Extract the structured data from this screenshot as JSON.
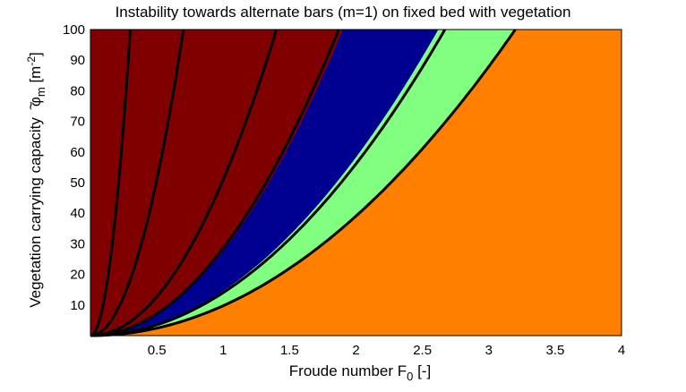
{
  "chart_data": {
    "type": "area",
    "title": "Instability towards alternate bars (m=1) on fixed bed with vegetation",
    "xlabel_main": "Froude number  F",
    "xlabel_sub": "0",
    "xlabel_unit": " [-]",
    "ylabel_main": "Vegetation carrying capacity",
    "ylabel_symbol": "φ",
    "ylabel_tilde": "~",
    "ylabel_symbol_sub": "m",
    "ylabel_unit": " [m",
    "ylabel_unit_sup": "-2",
    "ylabel_unit_close": "]",
    "xlim": [
      0,
      4
    ],
    "ylim": [
      0,
      100
    ],
    "x_ticks": [
      0.5,
      1,
      1.5,
      2,
      2.5,
      3,
      3.5,
      4
    ],
    "x_tick_labels": [
      "0.5",
      "1",
      "1.5",
      "2",
      "2.5",
      "3",
      "3.5",
      "4"
    ],
    "y_ticks": [
      10,
      20,
      30,
      40,
      50,
      60,
      70,
      80,
      90,
      100
    ],
    "y_tick_labels": [
      "10",
      "20",
      "30",
      "40",
      "50",
      "60",
      "70",
      "80",
      "90",
      "100"
    ],
    "grid": false,
    "colors": {
      "darkred": "#800000",
      "blue": "#000090",
      "green": "#80ff80",
      "orange": "#ff8000",
      "curve": "#000000"
    },
    "region_boundaries": {
      "darkred_blue": {
        "exponent": 2,
        "x_at_ymax": 1.9
      },
      "blue_green": {
        "exponent": 2,
        "x_at_ymax": 2.62
      },
      "green_orange": {
        "exponent": 2,
        "x_at_ymax": 3.2
      }
    },
    "black_curves": [
      {
        "exponent": 2,
        "x_at_ymax": 0.3
      },
      {
        "exponent": 2,
        "x_at_ymax": 0.7
      },
      {
        "exponent": 2,
        "x_at_ymax": 1.4
      },
      {
        "exponent": 2,
        "x_at_ymax": 1.87
      },
      {
        "exponent": 2,
        "x_at_ymax": 2.67
      },
      {
        "exponent": 2,
        "x_at_ymax": 3.2
      }
    ]
  }
}
